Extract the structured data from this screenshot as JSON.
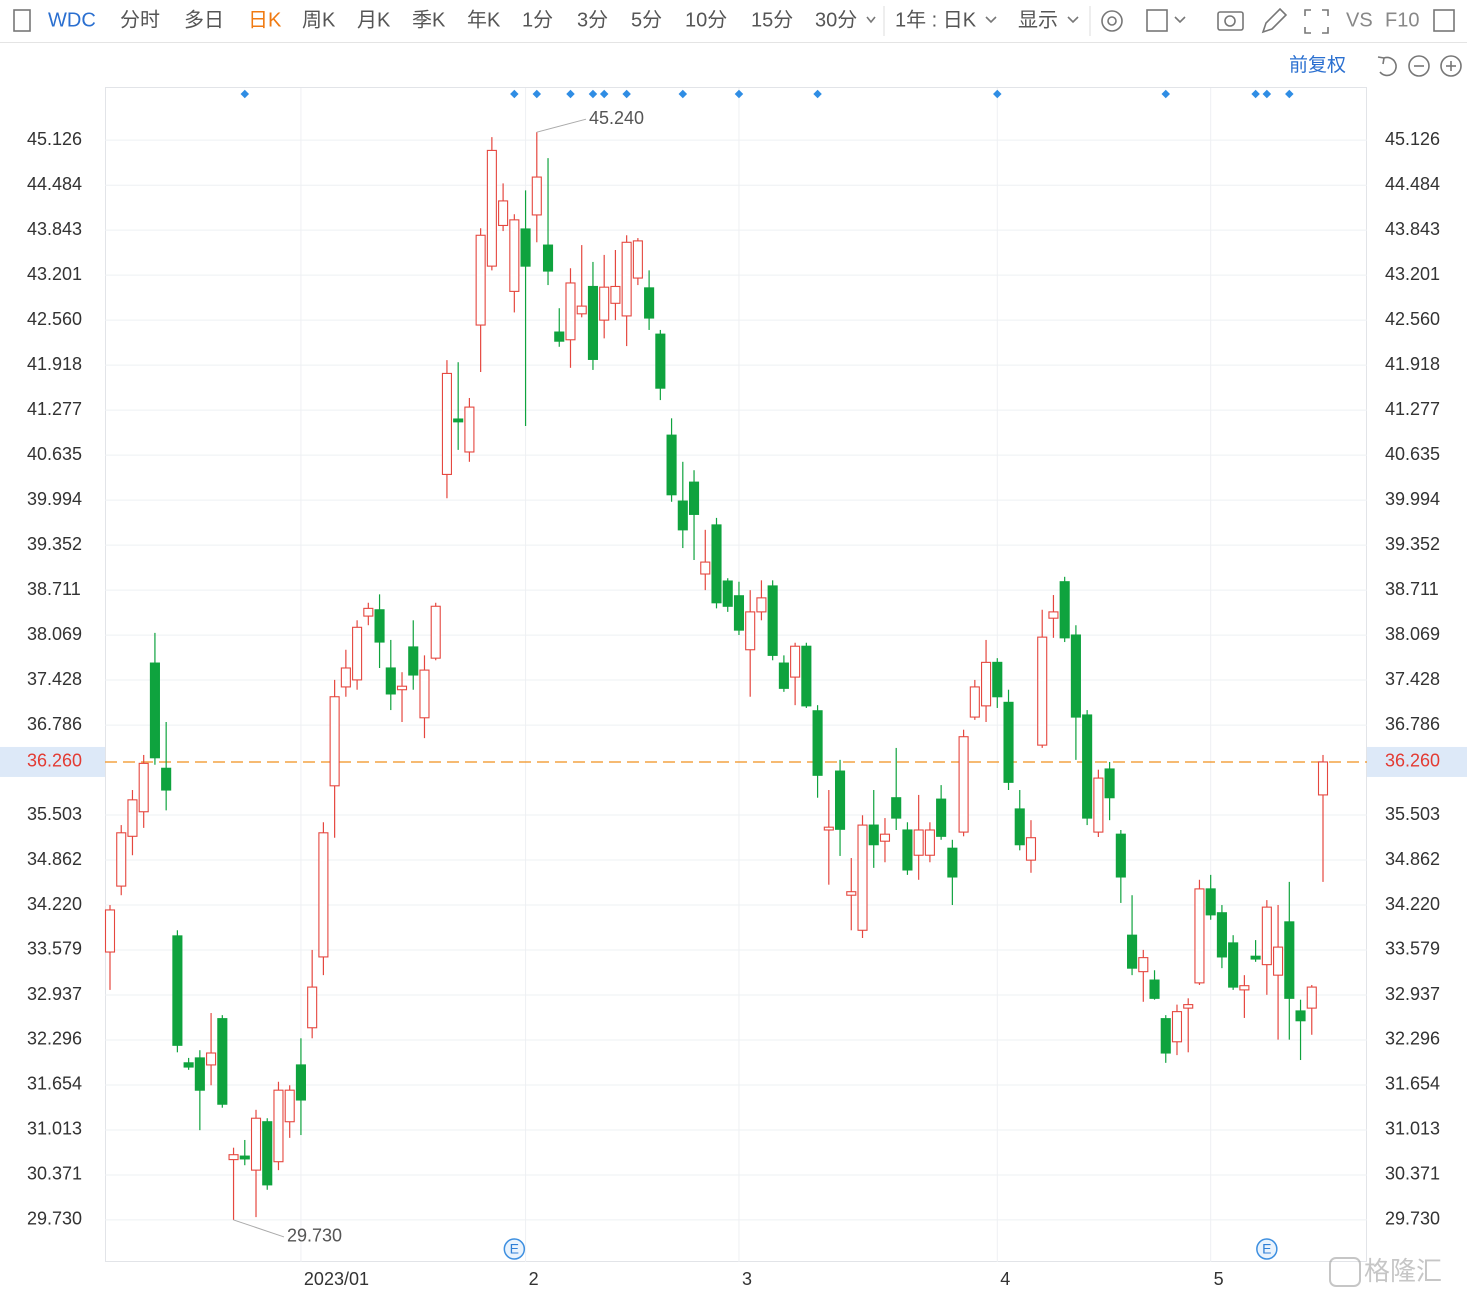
{
  "toolbar": {
    "symbol": "WDC",
    "periods": [
      "分时",
      "多日",
      "日K",
      "周K",
      "月K",
      "季K",
      "年K",
      "1分",
      "3分",
      "5分",
      "10分",
      "15分",
      "30分"
    ],
    "range": "1年 : 日K",
    "display": "显示",
    "vs": "VS",
    "f10": "F10",
    "adjust": "前复权"
  },
  "watermark": "格隆汇",
  "chart_data": {
    "type": "candlestick",
    "categories": [
      null,
      null,
      null,
      null,
      null,
      null,
      null,
      null,
      null,
      null,
      null,
      null,
      null,
      null,
      null,
      null,
      null,
      "2023/01",
      null,
      null,
      null,
      null,
      null,
      null,
      null,
      null,
      null,
      null,
      null,
      null,
      null,
      null,
      null,
      null,
      null,
      null,
      null,
      "2",
      null,
      null,
      null,
      null,
      null,
      null,
      null,
      null,
      null,
      null,
      null,
      null,
      null,
      null,
      null,
      null,
      null,
      null,
      "3",
      null,
      null,
      null,
      null,
      null,
      null,
      null,
      null,
      null,
      null,
      null,
      null,
      null,
      null,
      null,
      null,
      null,
      null,
      null,
      null,
      null,
      null,
      "4",
      null,
      null,
      null,
      null,
      null,
      null,
      null,
      null,
      null,
      null,
      null,
      null,
      null,
      null,
      null,
      null,
      null,
      null,
      "5",
      null,
      null,
      null,
      null,
      null,
      null,
      null,
      null,
      null,
      null
    ],
    "open": [
      33.55,
      34.49,
      35.2,
      35.55,
      37.67,
      36.17,
      33.78,
      31.97,
      32.04,
      31.94,
      32.6,
      30.59,
      30.64,
      30.44,
      31.13,
      30.56,
      31.13,
      31.94,
      32.47,
      33.48,
      35.92,
      37.33,
      37.43,
      38.34,
      38.43,
      37.6,
      37.29,
      37.9,
      36.89,
      37.74,
      40.36,
      41.15,
      40.68,
      42.49,
      43.33,
      43.91,
      42.97,
      43.86,
      44.06,
      43.63,
      42.39,
      42.28,
      42.65,
      43.04,
      42.56,
      42.8,
      42.62,
      43.16,
      43.02,
      42.36,
      40.92,
      39.98,
      40.25,
      38.94,
      39.64,
      38.84,
      38.63,
      37.86,
      38.4,
      38.77,
      37.67,
      37.47,
      37.91,
      36.99,
      35.29,
      36.13,
      34.36,
      33.86,
      35.36,
      35.13,
      35.75,
      35.29,
      34.93,
      34.93,
      35.73,
      35.03,
      35.26,
      36.9,
      37.06,
      37.68,
      37.11,
      35.59,
      34.86,
      36.5,
      38.31,
      38.83,
      38.07,
      36.93,
      35.26,
      36.16,
      35.23,
      33.79,
      33.27,
      33.15,
      32.6,
      32.27,
      32.75,
      33.11,
      34.45,
      34.11,
      33.68,
      33.01,
      33.49,
      33.37,
      33.22,
      33.98,
      32.71,
      32.75,
      35.79
    ],
    "high": [
      34.22,
      35.36,
      35.86,
      36.36,
      38.1,
      36.83,
      33.86,
      32.04,
      32.15,
      32.68,
      32.65,
      30.76,
      30.87,
      31.3,
      31.18,
      31.7,
      31.65,
      32.32,
      33.58,
      35.4,
      37.43,
      37.86,
      38.28,
      38.53,
      38.65,
      38.0,
      37.54,
      38.28,
      37.78,
      38.53,
      41.99,
      41.96,
      41.45,
      43.87,
      45.17,
      44.51,
      44.07,
      44.41,
      45.24,
      44.87,
      42.73,
      43.3,
      43.63,
      43.39,
      43.49,
      43.56,
      43.77,
      43.73,
      43.27,
      42.42,
      41.16,
      40.54,
      40.42,
      39.57,
      39.74,
      38.88,
      38.83,
      38.71,
      38.85,
      38.85,
      37.78,
      37.96,
      37.96,
      37.07,
      35.86,
      36.29,
      34.89,
      35.5,
      35.86,
      35.46,
      36.46,
      35.4,
      35.79,
      35.4,
      35.93,
      35.15,
      36.72,
      37.43,
      38.0,
      37.74,
      37.29,
      35.86,
      35.43,
      38.43,
      38.64,
      38.9,
      38.21,
      37.0,
      36.15,
      36.26,
      35.29,
      34.36,
      33.58,
      33.29,
      32.65,
      32.8,
      32.89,
      34.58,
      34.65,
      34.22,
      33.79,
      33.22,
      33.72,
      34.29,
      34.22,
      34.55,
      32.87,
      33.08,
      36.36
    ],
    "low": [
      33.01,
      34.36,
      34.93,
      35.32,
      36.22,
      35.57,
      32.12,
      31.87,
      31.01,
      31.65,
      31.33,
      29.73,
      30.51,
      29.77,
      30.16,
      30.44,
      30.9,
      30.94,
      32.32,
      33.22,
      35.18,
      37.19,
      37.29,
      38.21,
      37.6,
      37.0,
      36.83,
      37.29,
      36.6,
      37.71,
      40.02,
      40.71,
      40.54,
      41.82,
      43.27,
      43.83,
      42.67,
      41.05,
      43.67,
      43.06,
      42.18,
      41.88,
      42.6,
      41.85,
      42.3,
      42.56,
      42.19,
      43.06,
      42.42,
      41.42,
      39.97,
      39.31,
      39.14,
      38.71,
      38.45,
      38.4,
      38.07,
      37.19,
      38.28,
      37.71,
      37.26,
      37.07,
      37.03,
      35.75,
      34.51,
      34.92,
      33.86,
      33.75,
      34.75,
      34.83,
      35.29,
      34.65,
      34.58,
      34.83,
      35.15,
      34.22,
      35.2,
      36.86,
      36.83,
      37.03,
      35.86,
      35.0,
      34.68,
      36.46,
      38.03,
      37.97,
      36.29,
      35.36,
      35.19,
      35.43,
      34.25,
      33.22,
      32.84,
      32.87,
      31.97,
      32.08,
      32.12,
      33.08,
      34.01,
      33.32,
      33.01,
      32.61,
      33.41,
      32.94,
      32.3,
      32.3,
      32.01,
      32.37,
      34.55
    ],
    "close": [
      34.15,
      35.25,
      35.72,
      36.24,
      36.32,
      35.86,
      32.22,
      31.91,
      31.58,
      32.11,
      31.38,
      30.66,
      30.6,
      31.18,
      30.23,
      31.58,
      31.58,
      31.44,
      33.05,
      35.25,
      37.19,
      37.6,
      38.18,
      38.45,
      37.97,
      37.23,
      37.34,
      37.5,
      37.57,
      38.48,
      41.8,
      41.11,
      41.32,
      43.77,
      44.98,
      44.26,
      43.99,
      43.33,
      44.6,
      43.26,
      42.26,
      43.09,
      42.76,
      42.0,
      43.03,
      43.04,
      43.67,
      43.69,
      42.59,
      41.59,
      40.07,
      39.57,
      39.79,
      39.11,
      38.53,
      38.48,
      38.14,
      38.4,
      38.6,
      37.78,
      37.31,
      37.91,
      37.06,
      36.07,
      35.33,
      35.3,
      34.41,
      35.36,
      35.08,
      35.23,
      35.46,
      34.72,
      35.29,
      35.29,
      35.2,
      34.62,
      36.62,
      37.33,
      37.68,
      37.19,
      35.97,
      35.08,
      35.18,
      38.04,
      38.4,
      38.03,
      36.9,
      35.46,
      36.03,
      35.75,
      34.62,
      33.32,
      33.47,
      32.89,
      32.11,
      32.7,
      32.8,
      34.45,
      34.08,
      33.48,
      33.05,
      33.07,
      33.45,
      34.19,
      33.62,
      32.89,
      32.57,
      33.05,
      36.26
    ],
    "up_color": "#e5473f",
    "down_color": "#0fa33e",
    "ylim": [
      29.13,
      45.87
    ],
    "yticks": [
      45.126,
      44.484,
      43.843,
      43.201,
      {
        "value": 42.56,
        "label": "42.560"
      },
      41.918,
      41.277,
      40.635,
      39.994,
      39.352,
      38.711,
      38.069,
      37.428,
      36.786,
      35.503,
      34.862,
      {
        "value": 34.22,
        "label": "34.220"
      },
      33.579,
      32.937,
      32.296,
      31.654,
      31.013,
      30.371,
      {
        "value": 29.73,
        "label": "29.730"
      }
    ],
    "grid": true,
    "last_price": {
      "value": 36.26,
      "label": "36.260",
      "color": "#f0901e"
    },
    "max_label": {
      "value": 45.24,
      "label": "45.240"
    },
    "min_label": {
      "value": 29.73,
      "label": "29.730"
    },
    "event_days": [
      12,
      36,
      38,
      41,
      43,
      44,
      46,
      51,
      56,
      63,
      79,
      94,
      102,
      103,
      105
    ],
    "earnings_days": [
      36,
      103
    ],
    "earnings_label": "E"
  }
}
